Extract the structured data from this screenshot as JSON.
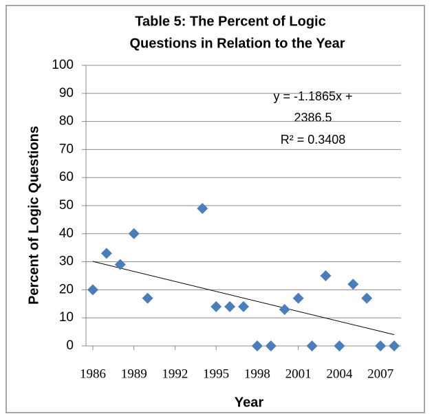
{
  "chart_data": {
    "type": "scatter",
    "title_lines": [
      "Table 5: The Percent of Logic",
      "Questions in Relation to the Year"
    ],
    "x_label": "Year",
    "y_label": "Percent of Logic Questions",
    "x": [
      1986,
      1987,
      1988,
      1989,
      1990,
      1994,
      1995,
      1996,
      1997,
      1998,
      1999,
      2000,
      2001,
      2002,
      2003,
      2004,
      2005,
      2006,
      2007,
      2008
    ],
    "values": [
      20,
      33,
      29,
      40,
      17,
      49,
      14,
      14,
      14,
      0,
      0,
      13,
      17,
      0,
      25,
      0,
      22,
      17,
      0,
      0
    ],
    "color": "#4a7ebb",
    "xlim": [
      1985.5,
      2008.5
    ],
    "xticks": [
      1986,
      1989,
      1992,
      1995,
      1998,
      2001,
      2004,
      2007
    ],
    "ylim": [
      0,
      100
    ],
    "yticks": [
      0,
      10,
      20,
      30,
      40,
      50,
      60,
      70,
      80,
      90,
      100
    ],
    "grid": true,
    "trendline": {
      "slope": -1.1865,
      "intercept": 2386.5,
      "x_range": [
        1986,
        2008
      ],
      "equation_lines": [
        "y = -1.1865x +",
        "2386.5"
      ],
      "r2_label": "R² = 0.3408"
    }
  }
}
